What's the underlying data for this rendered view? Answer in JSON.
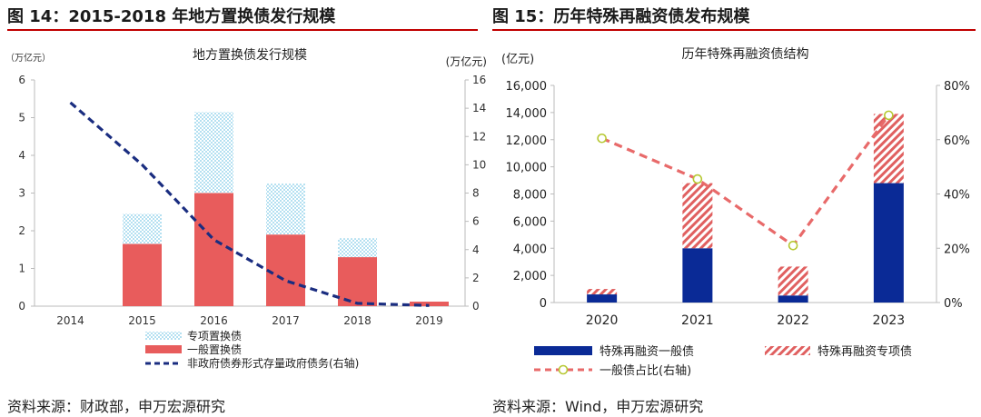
{
  "left_figure": {
    "heading": "图 14：2015-2018 年地方置换债发行规模",
    "source": "资料来源：财政部，申万宏源研究"
  },
  "right_figure": {
    "heading": "图 15：历年特殊再融资债发布规模",
    "source": "资料来源：Wind，申万宏源研究"
  },
  "colors": {
    "header_rule": "#c00000",
    "general_replacement": "#e85c5c",
    "special_replacement": "#7ecbe8",
    "non_gov_line": "#1a2d80",
    "general_bond": "#0a2a96",
    "special_bond": "#e06060",
    "ratio_line": "#e86a6a",
    "ratio_marker": "#b6c832"
  },
  "chart_data": [
    {
      "type": "bar",
      "title": "地方置换债发行规模",
      "ylabel": "（万亿元）",
      "y2label": "(万亿元)",
      "categories": [
        "2014",
        "2015",
        "2016",
        "2017",
        "2018",
        "2019"
      ],
      "ylim": [
        0,
        6
      ],
      "yticks": [
        "0",
        "1",
        "2",
        "3",
        "4",
        "5",
        "6"
      ],
      "y2lim": [
        0,
        16
      ],
      "y2ticks": [
        "0",
        "2",
        "4",
        "6",
        "8",
        "10",
        "12",
        "14",
        "16"
      ],
      "stacked": true,
      "series": [
        {
          "name": "一般置换债",
          "type": "bar",
          "values": [
            0,
            1.65,
            3.0,
            1.9,
            1.3,
            0.12
          ]
        },
        {
          "name": "专项置换债",
          "type": "bar",
          "values": [
            0,
            0.8,
            2.15,
            1.35,
            0.5,
            0.0
          ]
        },
        {
          "name": "非政府债券形式存量政府债务(右轴)",
          "type": "line",
          "axis": "right",
          "values": [
            14.4,
            10.0,
            4.7,
            1.8,
            0.2,
            0.05
          ]
        }
      ],
      "legend_position": "bottom",
      "grid": false
    },
    {
      "type": "bar",
      "title": "历年特殊再融资债结构",
      "ylabel": "(亿元)",
      "categories": [
        "2020",
        "2021",
        "2022",
        "2023"
      ],
      "ylim": [
        0,
        16000
      ],
      "yticks": [
        "0",
        "2,000",
        "4,000",
        "6,000",
        "8,000",
        "10,000",
        "12,000",
        "14,000",
        "16,000"
      ],
      "y2lim": [
        0,
        80
      ],
      "y2ticks": [
        "0%",
        "20%",
        "40%",
        "60%",
        "80%"
      ],
      "stacked": true,
      "series": [
        {
          "name": "特殊再融资一般债",
          "type": "bar",
          "values": [
            600,
            4000,
            520,
            8800
          ]
        },
        {
          "name": "特殊再融资专项债",
          "type": "bar",
          "values": [
            400,
            4800,
            2130,
            5100
          ]
        },
        {
          "name": "一般债占比(右轴)",
          "type": "line",
          "axis": "right",
          "unit": "%",
          "values": [
            60.5,
            45.5,
            21,
            69
          ]
        }
      ],
      "legend_position": "bottom",
      "grid": false
    }
  ]
}
